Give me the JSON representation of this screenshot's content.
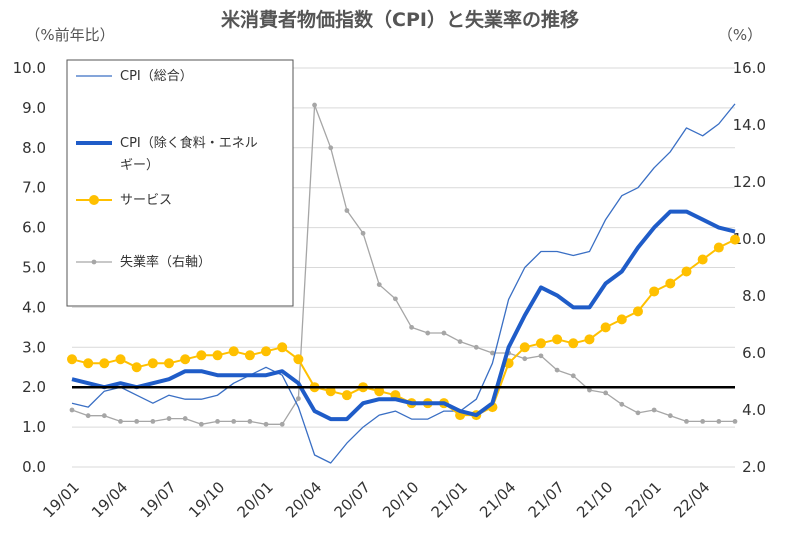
{
  "chart_data": {
    "type": "line",
    "title": "米消費者物価指数（CPI）と失業率の推移",
    "ylabel_left": "（%前年比）",
    "ylabel_right": "（%）",
    "ylim_left": [
      0,
      10
    ],
    "ylim_right": [
      2,
      16
    ],
    "yticks_left": [
      "0.0",
      "1.0",
      "2.0",
      "3.0",
      "4.0",
      "5.0",
      "6.0",
      "7.0",
      "8.0",
      "9.0",
      "10.0"
    ],
    "yticks_right": [
      "2.0",
      "4.0",
      "6.0",
      "8.0",
      "10.0",
      "12.0",
      "14.0",
      "16.0"
    ],
    "x_tick_labels": [
      "19/01",
      "19/04",
      "19/07",
      "19/10",
      "20/01",
      "20/04",
      "20/07",
      "20/10",
      "21/01",
      "21/04",
      "21/07",
      "21/10",
      "22/01",
      "22/04"
    ],
    "x": [
      "19/01",
      "19/02",
      "19/03",
      "19/04",
      "19/05",
      "19/06",
      "19/07",
      "19/08",
      "19/09",
      "19/10",
      "19/11",
      "19/12",
      "20/01",
      "20/02",
      "20/03",
      "20/04",
      "20/05",
      "20/06",
      "20/07",
      "20/08",
      "20/09",
      "20/10",
      "20/11",
      "20/12",
      "21/01",
      "21/02",
      "21/03",
      "21/04",
      "21/05",
      "21/06",
      "21/07",
      "21/08",
      "21/09",
      "21/10",
      "21/11",
      "21/12",
      "22/01",
      "22/02",
      "22/03",
      "22/04",
      "22/05",
      "22/06"
    ],
    "reference_line": 2.0,
    "legend_position": "top-left",
    "series": [
      {
        "name": "CPI（総合）",
        "axis": "left",
        "color": "#3a6fc4",
        "style": "thin",
        "values": [
          1.6,
          1.5,
          1.9,
          2.0,
          1.8,
          1.6,
          1.8,
          1.7,
          1.7,
          1.8,
          2.1,
          2.3,
          2.5,
          2.3,
          1.5,
          0.3,
          0.1,
          0.6,
          1.0,
          1.3,
          1.4,
          1.2,
          1.2,
          1.4,
          1.4,
          1.7,
          2.6,
          4.2,
          5.0,
          5.4,
          5.4,
          5.3,
          5.4,
          6.2,
          6.8,
          7.0,
          7.5,
          7.9,
          8.5,
          8.3,
          8.6,
          9.1
        ]
      },
      {
        "name": "CPI（除く食料・エネルギー）",
        "axis": "left",
        "color": "#1f5cc8",
        "style": "thick",
        "values": [
          2.2,
          2.1,
          2.0,
          2.1,
          2.0,
          2.1,
          2.2,
          2.4,
          2.4,
          2.3,
          2.3,
          2.3,
          2.3,
          2.4,
          2.1,
          1.4,
          1.2,
          1.2,
          1.6,
          1.7,
          1.7,
          1.6,
          1.6,
          1.6,
          1.4,
          1.3,
          1.6,
          3.0,
          3.8,
          4.5,
          4.3,
          4.0,
          4.0,
          4.6,
          4.9,
          5.5,
          6.0,
          6.4,
          6.4,
          6.2,
          6.0,
          5.9
        ]
      },
      {
        "name": "サービス",
        "axis": "left",
        "color": "#ffc000",
        "style": "markers",
        "values": [
          2.7,
          2.6,
          2.6,
          2.7,
          2.5,
          2.6,
          2.6,
          2.7,
          2.8,
          2.8,
          2.9,
          2.8,
          2.9,
          3.0,
          2.7,
          2.0,
          1.9,
          1.8,
          2.0,
          1.9,
          1.8,
          1.6,
          1.6,
          1.6,
          1.3,
          1.3,
          1.5,
          2.6,
          3.0,
          3.1,
          3.2,
          3.1,
          3.2,
          3.5,
          3.7,
          3.9,
          4.4,
          4.6,
          4.9,
          5.2,
          5.5,
          5.7
        ]
      },
      {
        "name": "失業率（右軸）",
        "axis": "right",
        "color": "#a6a6a6",
        "style": "small-markers",
        "values": [
          4.0,
          3.8,
          3.8,
          3.6,
          3.6,
          3.6,
          3.7,
          3.7,
          3.5,
          3.6,
          3.6,
          3.6,
          3.5,
          3.5,
          4.4,
          14.7,
          13.2,
          11.0,
          10.2,
          8.4,
          7.9,
          6.9,
          6.7,
          6.7,
          6.4,
          6.2,
          6.0,
          6.0,
          5.8,
          5.9,
          5.4,
          5.2,
          4.7,
          4.6,
          4.2,
          3.9,
          4.0,
          3.8,
          3.6,
          3.6,
          3.6,
          3.6
        ]
      }
    ]
  }
}
